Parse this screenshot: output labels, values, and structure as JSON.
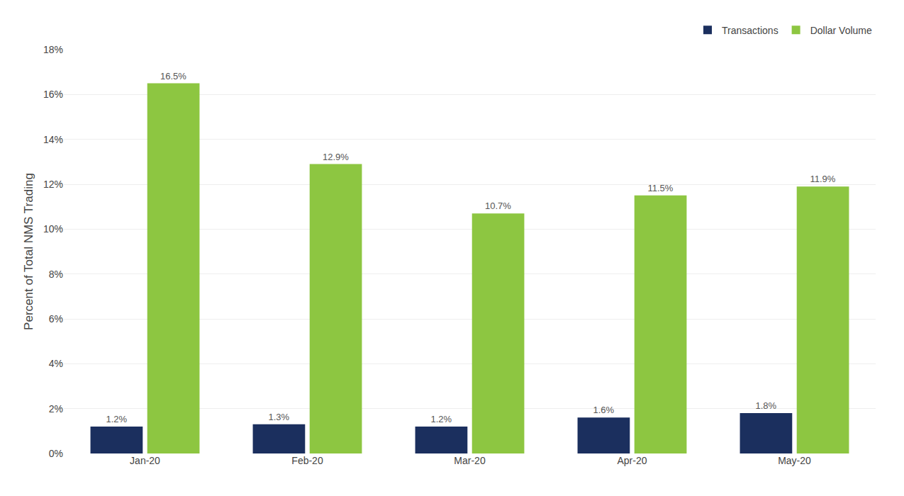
{
  "chart_data": {
    "type": "bar",
    "categories": [
      "Jan-20",
      "Feb-20",
      "Mar-20",
      "Apr-20",
      "May-20"
    ],
    "series": [
      {
        "name": "Transactions",
        "color": "#1b2f5e",
        "values": [
          1.2,
          1.3,
          1.2,
          1.6,
          1.8
        ],
        "value_labels": [
          "1.2%",
          "1.3%",
          "1.2%",
          "1.6%",
          "1.8%"
        ]
      },
      {
        "name": "Dollar Volume",
        "color": "#8dc641",
        "values": [
          16.5,
          12.9,
          10.7,
          11.5,
          11.9
        ],
        "value_labels": [
          "16.5%",
          "12.9%",
          "10.7%",
          "11.5%",
          "11.9%"
        ]
      }
    ],
    "ylabel": "Percent of Total NMS Trading",
    "ylim": [
      0,
      18
    ],
    "yticks": [
      {
        "value": 0,
        "label": "0%"
      },
      {
        "value": 2,
        "label": "2%"
      },
      {
        "value": 4,
        "label": "4%"
      },
      {
        "value": 6,
        "label": "6%"
      },
      {
        "value": 8,
        "label": "8%"
      },
      {
        "value": 10,
        "label": "10%"
      },
      {
        "value": 12,
        "label": "12%"
      },
      {
        "value": 14,
        "label": "14%"
      },
      {
        "value": 16,
        "label": "16%"
      },
      {
        "value": 18,
        "label": "18%"
      }
    ],
    "grid": true,
    "legend": "upper right",
    "data_labels": true
  }
}
